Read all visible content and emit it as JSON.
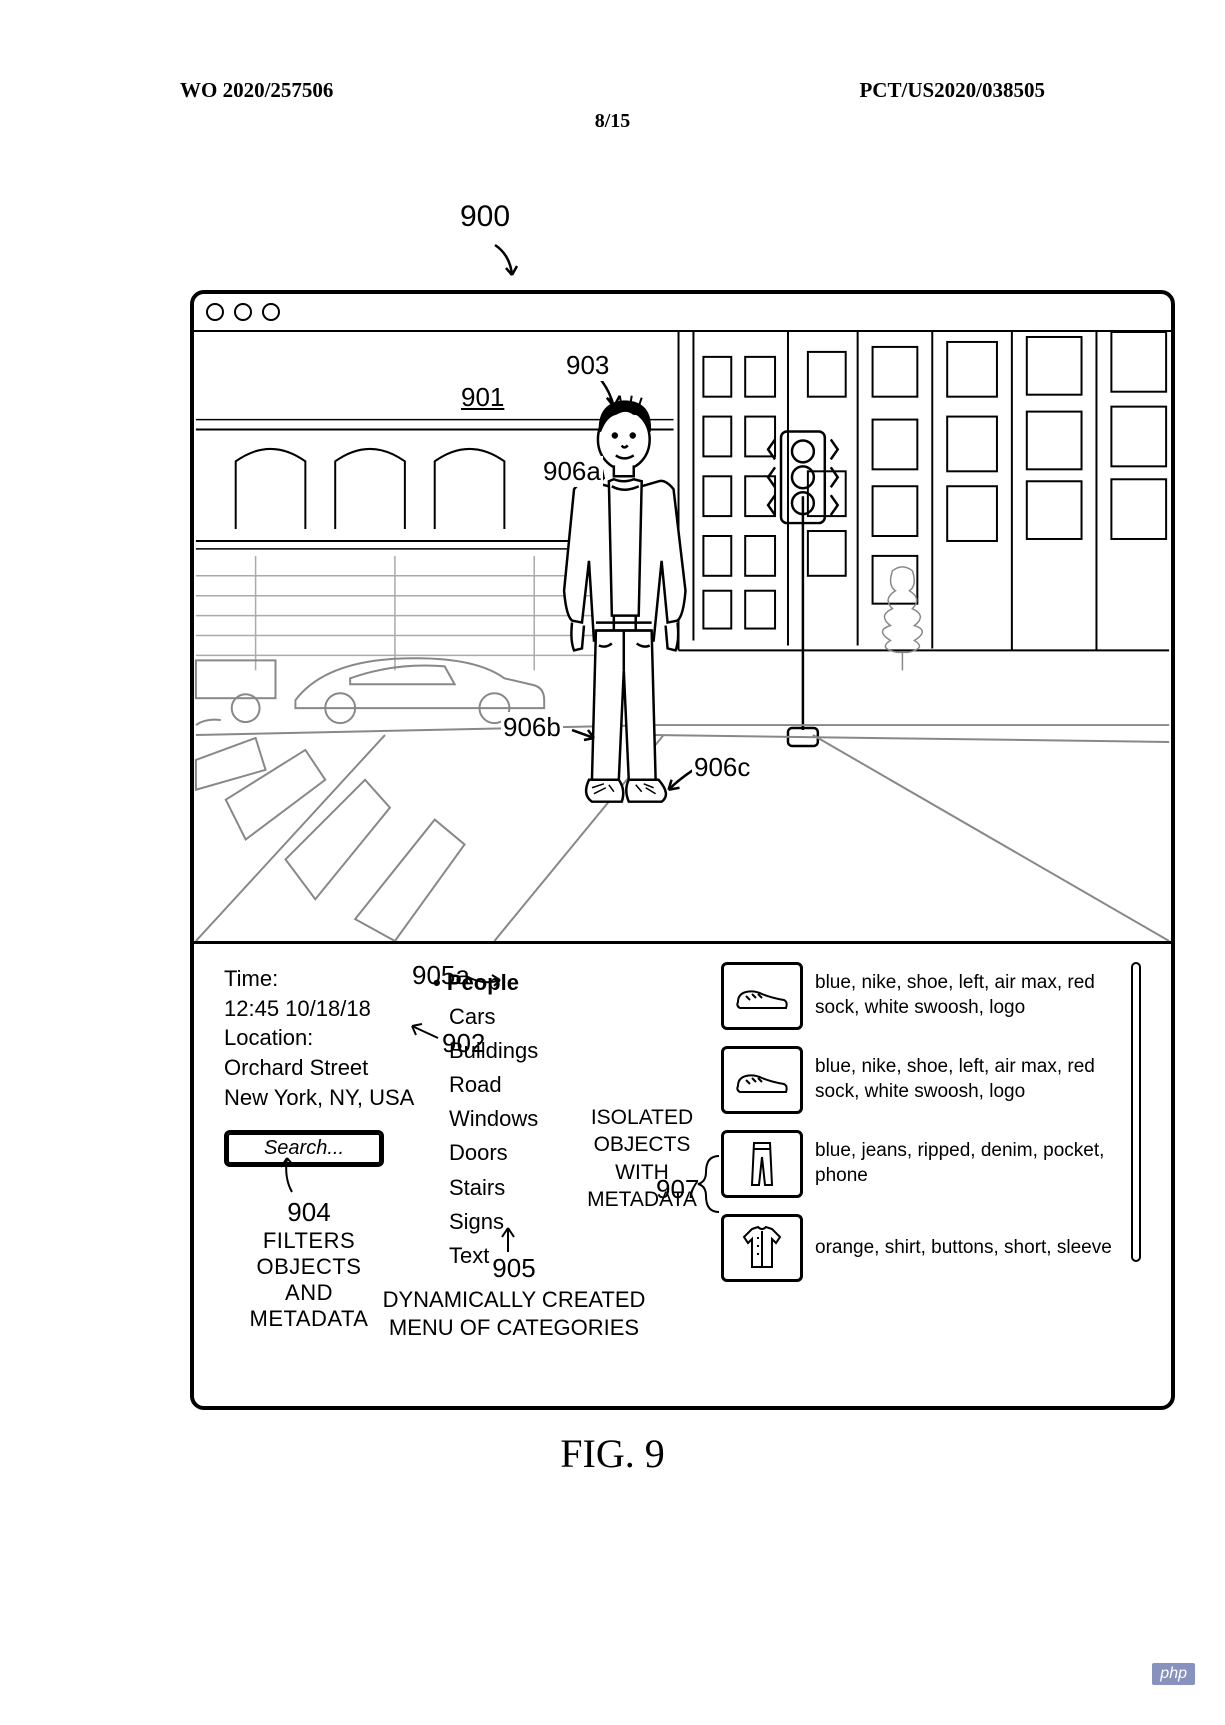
{
  "header": {
    "left": "WO 2020/257506",
    "right": "PCT/US2020/038505",
    "page": "8/15"
  },
  "figure": {
    "ref_main": "900",
    "caption": "FIG. 9",
    "ref_901": "901",
    "ref_903": "903",
    "ref_906a": "906a",
    "ref_906b": "906b",
    "ref_906c": "906c"
  },
  "info": {
    "time_label": "Time:",
    "time_value": "12:45 10/18/18",
    "location_label": "Location:",
    "location_line1": "Orchard Street",
    "location_line2": "New York, NY, USA"
  },
  "search": {
    "placeholder": "Search..."
  },
  "ref_904": {
    "num": "904",
    "text1": "FILTERS OBJECTS",
    "text2": "AND METADATA"
  },
  "ref_902": "902",
  "ref_905a": "905a",
  "categories": {
    "items": [
      "People",
      "Cars",
      "Buildings",
      "Road",
      "Windows",
      "Doors",
      "Stairs",
      "Signs",
      "Text"
    ],
    "selected_index": 0
  },
  "ref_905": {
    "num": "905",
    "text1": "DYNAMICALLY CREATED",
    "text2": "MENU OF CATEGORIES"
  },
  "meta_label": {
    "line1": "ISOLATED",
    "line2": "OBJECTS WITH",
    "line3": "METADATA"
  },
  "ref_907": "907",
  "objects": [
    {
      "icon": "shoe",
      "desc": "blue, nike, shoe, left, air max, red sock, white swoosh, logo"
    },
    {
      "icon": "shoe",
      "desc": "blue, nike, shoe, left, air max, red sock, white swoosh, logo"
    },
    {
      "icon": "pants",
      "desc": "blue, jeans, ripped, denim, pocket, phone"
    },
    {
      "icon": "shirt",
      "desc": "orange, shirt, buttons, short, sleeve"
    }
  ],
  "badge": "php"
}
